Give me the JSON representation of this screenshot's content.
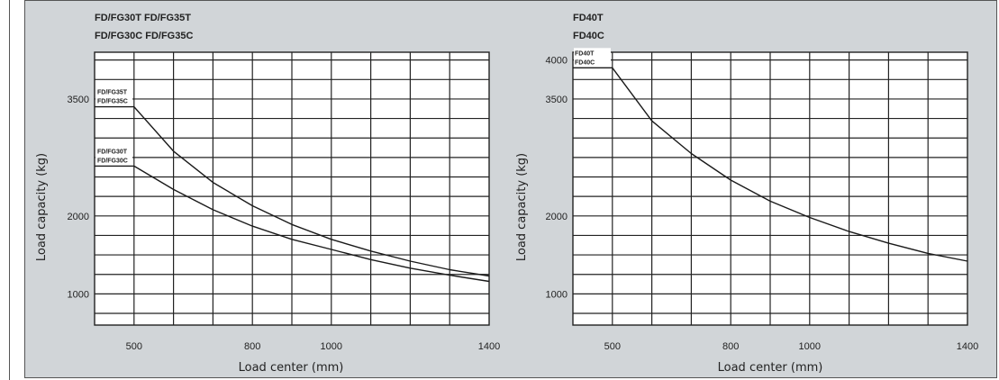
{
  "chart_data": [
    {
      "type": "line",
      "title_lines": [
        "FD/FG30T FD/FG35T",
        "FD/FG30C FD/FG35C"
      ],
      "xlabel": "Load center (mm)",
      "ylabel": "Load capacity (kg)",
      "x_ticks": [
        500,
        800,
        1000,
        1400
      ],
      "y_ticks": [
        1000,
        2000,
        3500
      ],
      "xlim": [
        400,
        1400
      ],
      "ylim": [
        600,
        4100
      ],
      "grid": true,
      "series": [
        {
          "name_lines": [
            "FD/FG35T",
            "FD/FG35C"
          ],
          "x": [
            400,
            500,
            600,
            700,
            800,
            900,
            1000,
            1100,
            1200,
            1300,
            1400
          ],
          "y": [
            3400,
            3400,
            2830,
            2430,
            2130,
            1890,
            1700,
            1550,
            1420,
            1310,
            1230
          ]
        },
        {
          "name_lines": [
            "FD/FG30T",
            "FD/FG30C"
          ],
          "x": [
            400,
            500,
            600,
            700,
            800,
            900,
            1000,
            1100,
            1200,
            1300,
            1400
          ],
          "y": [
            2640,
            2640,
            2340,
            2080,
            1870,
            1700,
            1570,
            1440,
            1330,
            1240,
            1160
          ]
        }
      ]
    },
    {
      "type": "line",
      "title_lines": [
        "FD40T",
        "FD40C"
      ],
      "xlabel": "Load center (mm)",
      "ylabel": "Load capacity (kg)",
      "x_ticks": [
        500,
        800,
        1000,
        1400
      ],
      "y_ticks": [
        1000,
        2000,
        3500,
        4000
      ],
      "xlim": [
        400,
        1400
      ],
      "ylim": [
        600,
        4100
      ],
      "grid": true,
      "series": [
        {
          "name_lines": [
            "FD40T",
            "FD40C"
          ],
          "x": [
            400,
            500,
            600,
            700,
            800,
            900,
            1000,
            1100,
            1200,
            1300,
            1400
          ],
          "y": [
            3900,
            3900,
            3220,
            2800,
            2460,
            2190,
            1980,
            1800,
            1650,
            1520,
            1420
          ]
        }
      ]
    }
  ]
}
